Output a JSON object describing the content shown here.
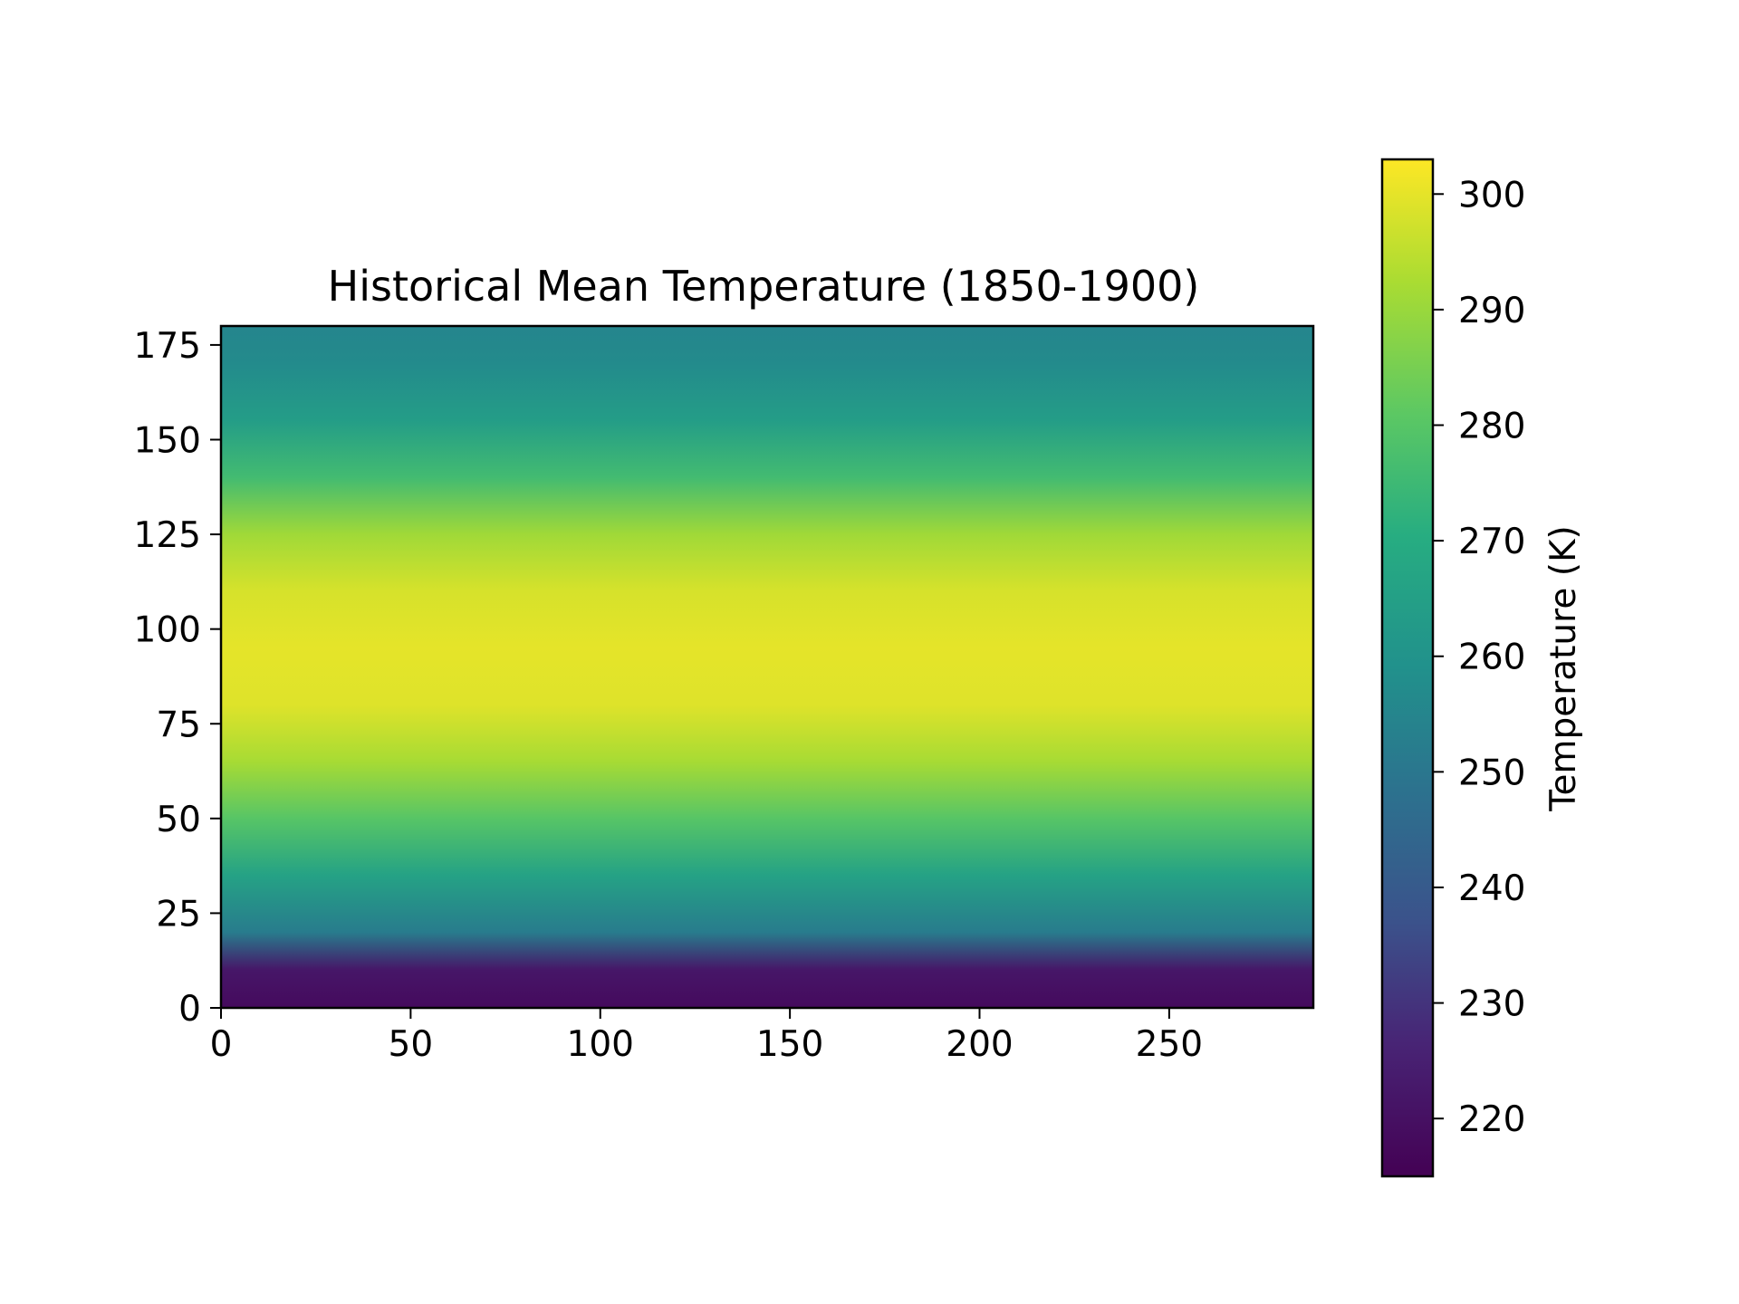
{
  "chart_data": {
    "type": "heatmap",
    "title": "Historical Mean Temperature (1850-1900)",
    "xlabel": "",
    "ylabel": "",
    "xlim": [
      0,
      288
    ],
    "ylim": [
      0,
      180
    ],
    "x_ticks": [
      0,
      50,
      100,
      150,
      200,
      250
    ],
    "y_ticks": [
      0,
      25,
      50,
      75,
      100,
      125,
      150,
      175
    ],
    "grid": false,
    "colormap": "viridis",
    "colorbar": {
      "label": "Temperature (K)",
      "range": [
        215,
        303
      ],
      "ticks": [
        220,
        230,
        240,
        250,
        260,
        270,
        280,
        290,
        300
      ]
    },
    "zonal_profile": [
      {
        "row": 0,
        "value": 218
      },
      {
        "row": 10,
        "value": 222
      },
      {
        "row": 20,
        "value": 252
      },
      {
        "row": 35,
        "value": 266
      },
      {
        "row": 50,
        "value": 280
      },
      {
        "row": 65,
        "value": 292
      },
      {
        "row": 80,
        "value": 299
      },
      {
        "row": 95,
        "value": 300
      },
      {
        "row": 110,
        "value": 298
      },
      {
        "row": 125,
        "value": 291
      },
      {
        "row": 140,
        "value": 276
      },
      {
        "row": 155,
        "value": 264
      },
      {
        "row": 170,
        "value": 257
      },
      {
        "row": 180,
        "value": 255
      }
    ]
  }
}
